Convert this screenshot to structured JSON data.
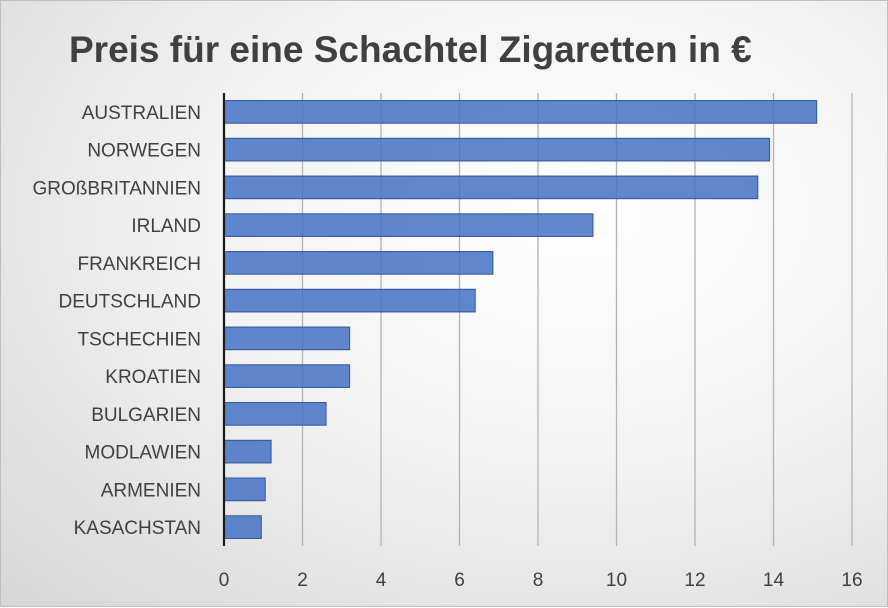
{
  "chart_data": {
    "type": "bar",
    "orientation": "horizontal",
    "title": "Preis für eine Schachtel Zigaretten in €",
    "categories": [
      "AUSTRALIEN",
      "NORWEGEN",
      "GROßBRITANNIEN",
      "IRLAND",
      "FRANKREICH",
      "DEUTSCHLAND",
      "TSCHECHIEN",
      "KROATIEN",
      "BULGARIEN",
      "MODLAWIEN",
      "ARMENIEN",
      "KASACHSTAN"
    ],
    "values": [
      15.1,
      13.9,
      13.6,
      9.4,
      6.85,
      6.4,
      3.2,
      3.2,
      2.6,
      1.2,
      1.05,
      0.95
    ],
    "xlim": [
      0,
      16
    ],
    "xticks": [
      "0",
      "2",
      "4",
      "6",
      "8",
      "10",
      "12",
      "14",
      "16"
    ],
    "xlabel": "",
    "ylabel": "",
    "grid": "vertical",
    "legend": "none",
    "bar_color": "#4472c4"
  }
}
